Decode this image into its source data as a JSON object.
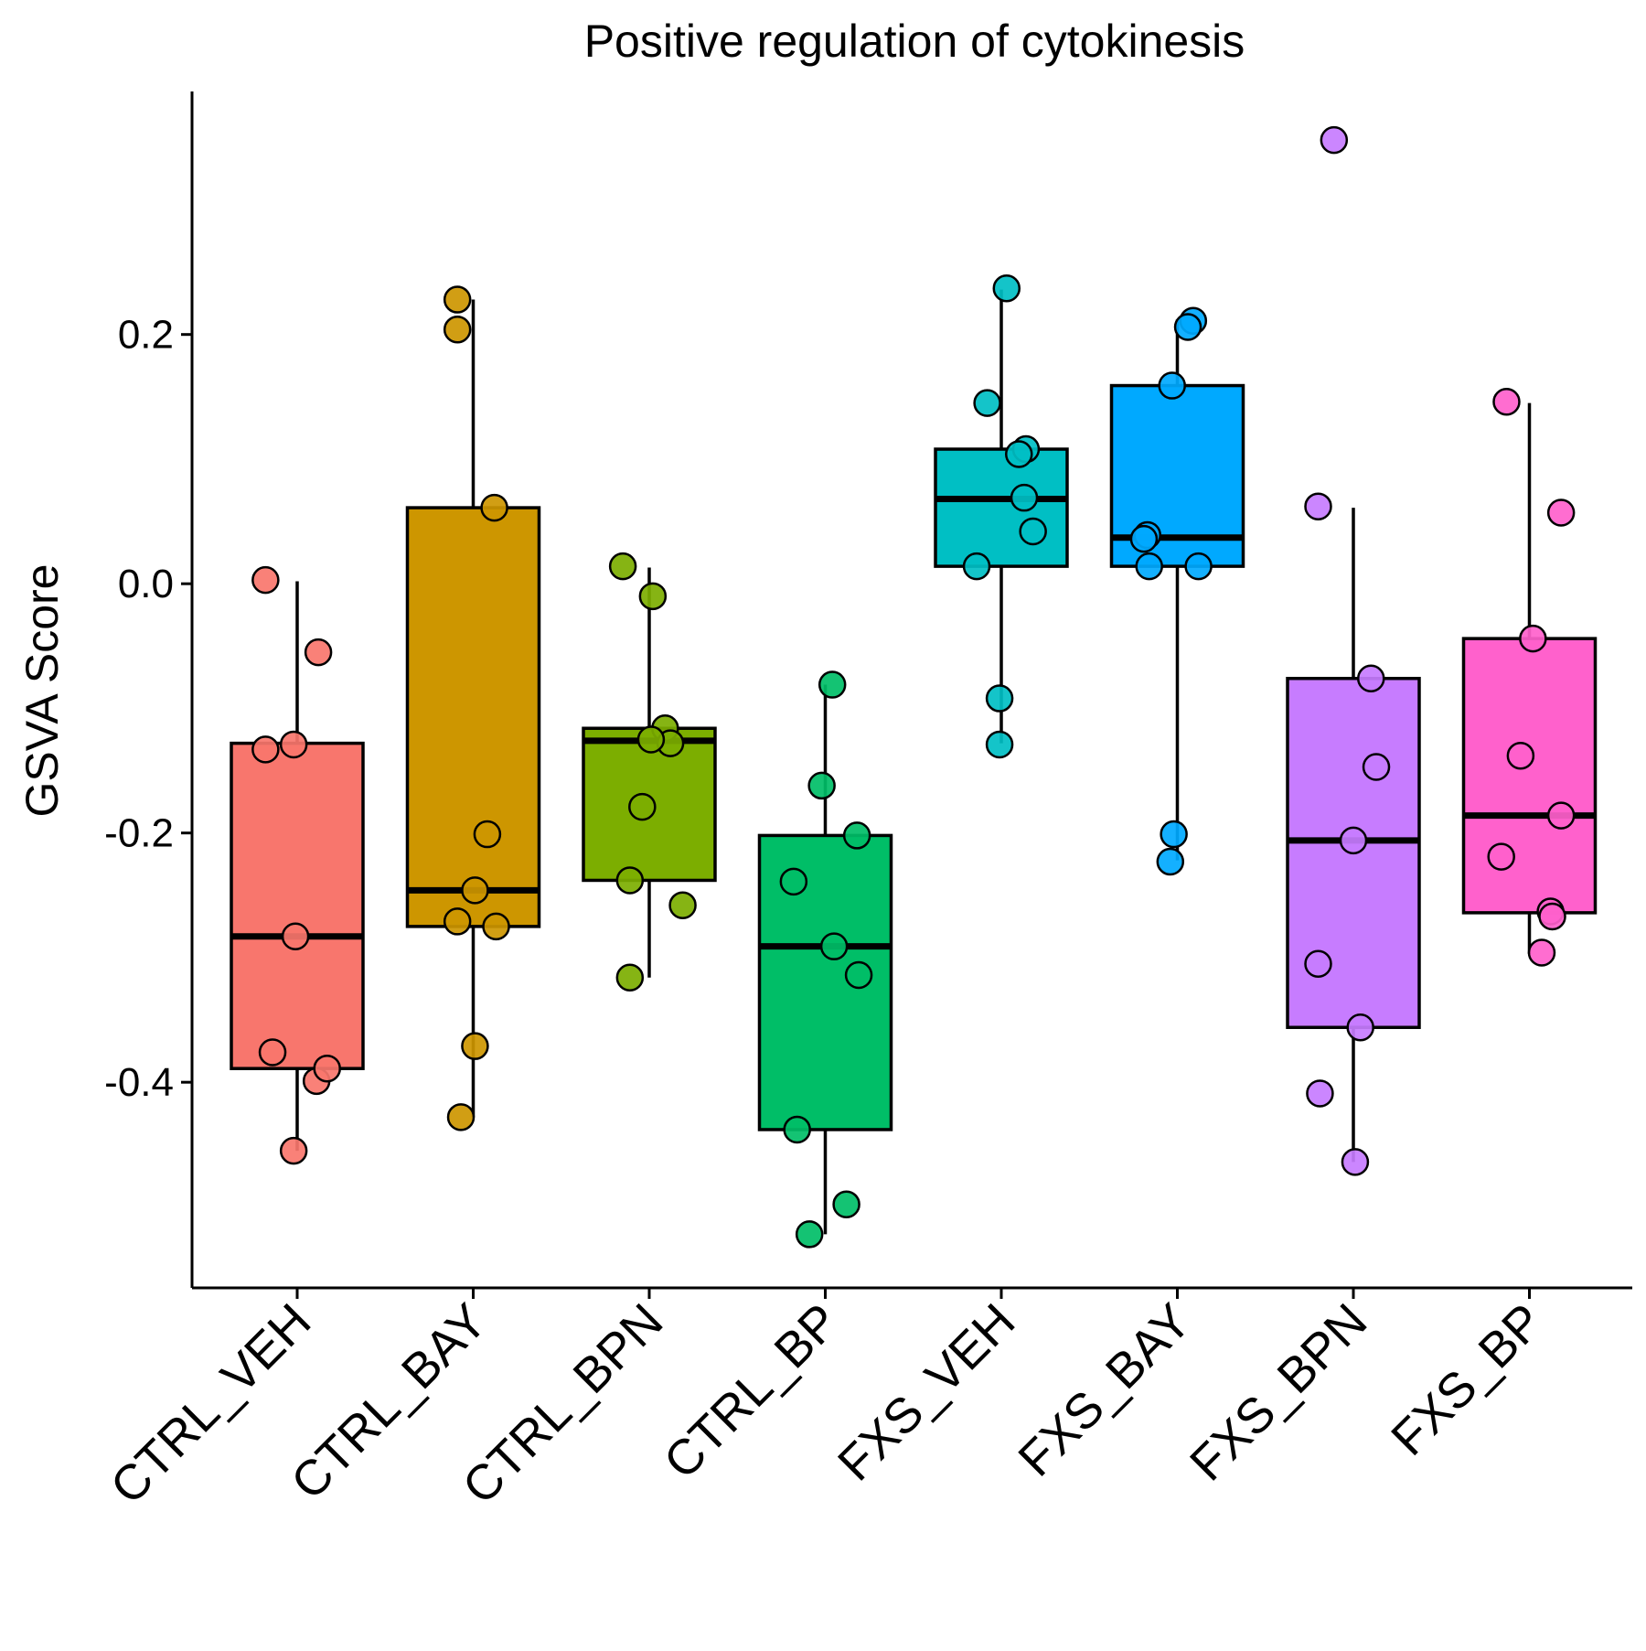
{
  "chart_data": {
    "type": "boxplot",
    "title": "Positive regulation of cytokinesis",
    "xlabel": "",
    "ylabel": "GSVA Score",
    "ylim": [
      -0.565,
      0.395
    ],
    "yticks": [
      -0.4,
      -0.2,
      0.0,
      0.2
    ],
    "ytick_labels": [
      "-0.4",
      "-0.2",
      "0.0",
      "0.2"
    ],
    "grid": false,
    "legend": "none",
    "categories": [
      "CTRL_VEH",
      "CTRL_BAY",
      "CTRL_BPN",
      "CTRL_BP",
      "FXS_VEH",
      "FXS_BAY",
      "FXS_BPN",
      "FXS_BP"
    ],
    "series": [
      {
        "color": "#F8766D",
        "box": {
          "min": -0.455,
          "q1": -0.389,
          "median": -0.283,
          "q3": -0.128,
          "max": 0.002
        },
        "points": [
          {
            "x": -0.18,
            "y": 0.003
          },
          {
            "x": 0.12,
            "y": -0.055
          },
          {
            "x": -0.18,
            "y": -0.133
          },
          {
            "x": -0.02,
            "y": -0.129
          },
          {
            "x": -0.01,
            "y": -0.283
          },
          {
            "x": -0.14,
            "y": -0.376
          },
          {
            "x": 0.11,
            "y": -0.399
          },
          {
            "x": 0.17,
            "y": -0.389
          },
          {
            "x": -0.02,
            "y": -0.455
          }
        ]
      },
      {
        "color": "#CD9600",
        "box": {
          "min": -0.428,
          "q1": -0.275,
          "median": -0.246,
          "q3": 0.061,
          "max": 0.228
        },
        "points": [
          {
            "x": -0.09,
            "y": 0.228
          },
          {
            "x": -0.09,
            "y": 0.204
          },
          {
            "x": 0.12,
            "y": 0.061
          },
          {
            "x": 0.08,
            "y": -0.201
          },
          {
            "x": 0.01,
            "y": -0.246
          },
          {
            "x": -0.09,
            "y": -0.271
          },
          {
            "x": 0.13,
            "y": -0.275
          },
          {
            "x": 0.01,
            "y": -0.371
          },
          {
            "x": -0.07,
            "y": -0.428
          }
        ]
      },
      {
        "color": "#7CAE00",
        "box": {
          "min": -0.316,
          "q1": -0.238,
          "median": -0.126,
          "q3": -0.116,
          "max": 0.013
        },
        "points": [
          {
            "x": -0.15,
            "y": 0.014
          },
          {
            "x": 0.02,
            "y": -0.01
          },
          {
            "x": 0.09,
            "y": -0.116
          },
          {
            "x": 0.12,
            "y": -0.128
          },
          {
            "x": 0.01,
            "y": -0.125
          },
          {
            "x": -0.04,
            "y": -0.179
          },
          {
            "x": -0.11,
            "y": -0.238
          },
          {
            "x": 0.19,
            "y": -0.258
          },
          {
            "x": -0.11,
            "y": -0.316
          }
        ]
      },
      {
        "color": "#00BE67",
        "box": {
          "min": -0.522,
          "q1": -0.438,
          "median": -0.291,
          "q3": -0.202,
          "max": -0.081
        },
        "points": [
          {
            "x": 0.04,
            "y": -0.081
          },
          {
            "x": -0.02,
            "y": -0.162
          },
          {
            "x": 0.18,
            "y": -0.202
          },
          {
            "x": -0.18,
            "y": -0.239
          },
          {
            "x": 0.05,
            "y": -0.291
          },
          {
            "x": 0.19,
            "y": -0.314
          },
          {
            "x": -0.16,
            "y": -0.438
          },
          {
            "x": 0.12,
            "y": -0.498
          },
          {
            "x": -0.09,
            "y": -0.522
          }
        ]
      },
      {
        "color": "#00BFC4",
        "box": {
          "min": -0.128,
          "q1": 0.014,
          "median": 0.068,
          "q3": 0.108,
          "max": 0.236
        },
        "points": [
          {
            "x": 0.03,
            "y": 0.237
          },
          {
            "x": -0.08,
            "y": 0.145
          },
          {
            "x": 0.14,
            "y": 0.108
          },
          {
            "x": 0.1,
            "y": 0.104
          },
          {
            "x": 0.13,
            "y": 0.069
          },
          {
            "x": 0.18,
            "y": 0.042
          },
          {
            "x": -0.14,
            "y": 0.014
          },
          {
            "x": -0.01,
            "y": -0.092
          },
          {
            "x": -0.01,
            "y": -0.129
          }
        ]
      },
      {
        "color": "#00A9FF",
        "box": {
          "min": -0.222,
          "q1": 0.014,
          "median": 0.037,
          "q3": 0.159,
          "max": 0.212
        },
        "points": [
          {
            "x": 0.09,
            "y": 0.211
          },
          {
            "x": 0.06,
            "y": 0.206
          },
          {
            "x": -0.03,
            "y": 0.159
          },
          {
            "x": -0.17,
            "y": 0.039
          },
          {
            "x": -0.19,
            "y": 0.036
          },
          {
            "x": -0.16,
            "y": 0.014
          },
          {
            "x": 0.12,
            "y": 0.014
          },
          {
            "x": -0.02,
            "y": -0.201
          },
          {
            "x": -0.04,
            "y": -0.223
          }
        ]
      },
      {
        "color": "#C77CFF",
        "box": {
          "min": -0.464,
          "q1": -0.356,
          "median": -0.206,
          "q3": -0.076,
          "max": 0.061
        },
        "points": [
          {
            "x": -0.11,
            "y": 0.356
          },
          {
            "x": -0.2,
            "y": 0.062
          },
          {
            "x": 0.1,
            "y": -0.076
          },
          {
            "x": 0.13,
            "y": -0.147
          },
          {
            "x": 0.0,
            "y": -0.206
          },
          {
            "x": -0.2,
            "y": -0.305
          },
          {
            "x": 0.04,
            "y": -0.356
          },
          {
            "x": -0.19,
            "y": -0.409
          },
          {
            "x": 0.01,
            "y": -0.464
          }
        ]
      },
      {
        "color": "#FF61CC",
        "box": {
          "min": -0.297,
          "q1": -0.264,
          "median": -0.186,
          "q3": -0.044,
          "max": 0.145
        },
        "points": [
          {
            "x": -0.13,
            "y": 0.146
          },
          {
            "x": 0.18,
            "y": 0.057
          },
          {
            "x": 0.02,
            "y": -0.044
          },
          {
            "x": -0.05,
            "y": -0.138
          },
          {
            "x": 0.18,
            "y": -0.186
          },
          {
            "x": -0.16,
            "y": -0.219
          },
          {
            "x": 0.12,
            "y": -0.263
          },
          {
            "x": 0.13,
            "y": -0.267
          },
          {
            "x": 0.07,
            "y": -0.296
          }
        ]
      }
    ]
  }
}
